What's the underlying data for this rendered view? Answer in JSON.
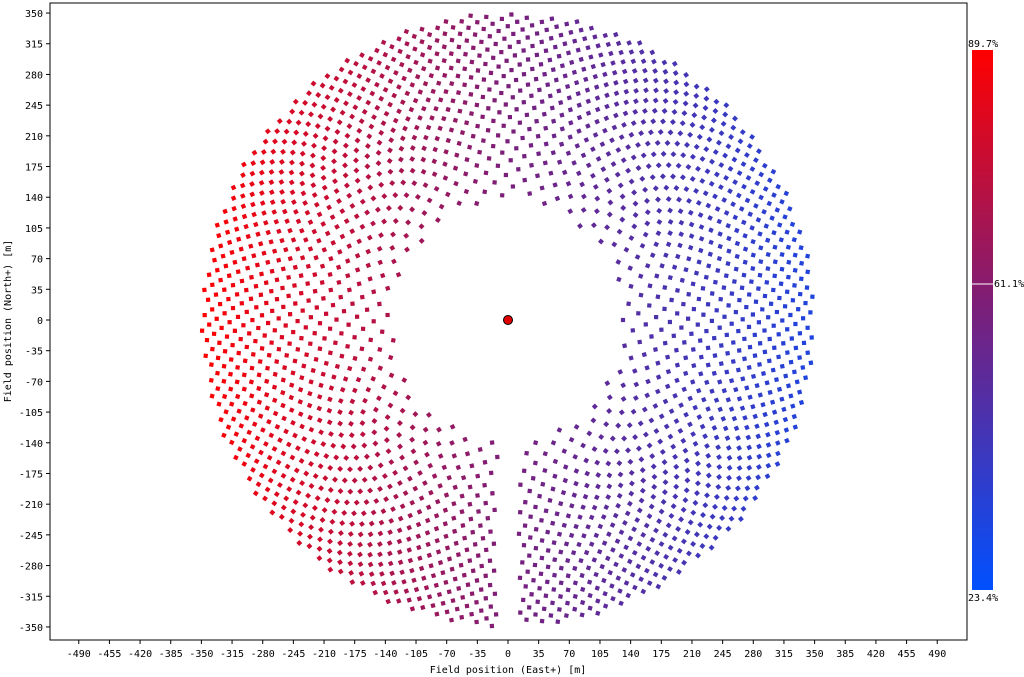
{
  "chart_data": {
    "type": "scatter",
    "title": "",
    "xlabel": "Field position (East+) [m]",
    "ylabel": "Field position (North+) [m]",
    "xlim": [
      -525,
      525
    ],
    "ylim": [
      -360,
      360
    ],
    "x_ticks": [
      -490,
      -455,
      -420,
      -385,
      -350,
      -315,
      -280,
      -245,
      -210,
      -175,
      -140,
      -105,
      -70,
      -35,
      0,
      35,
      70,
      105,
      140,
      175,
      210,
      245,
      280,
      315,
      350,
      385,
      420,
      455,
      490
    ],
    "y_ticks": [
      350,
      315,
      280,
      245,
      210,
      175,
      140,
      105,
      70,
      35,
      0,
      -35,
      -70,
      -105,
      -140,
      -175,
      -210,
      -245,
      -280,
      -315,
      -350
    ],
    "grid": false,
    "receiver": {
      "x": 0,
      "y": 0,
      "color": "#e00000"
    },
    "field": {
      "description": "radial-staggered heliostat field",
      "east_west_semi_axis_inner": 95,
      "north_south_semi_axis_inner": 100,
      "east_west_semi_axis_outer": 350,
      "north_south_semi_axis_outer": 350,
      "southern_gap_width": 12
    },
    "colorbar": {
      "min_label": "23.4%",
      "mid_label": "61.1%",
      "max_label": "89.7%",
      "min_value": 23.4,
      "mid_value": 61.1,
      "max_value": 89.7,
      "color_min": "#0050ff",
      "color_mid": "#7a1f7a",
      "color_max": "#ff0000"
    }
  }
}
